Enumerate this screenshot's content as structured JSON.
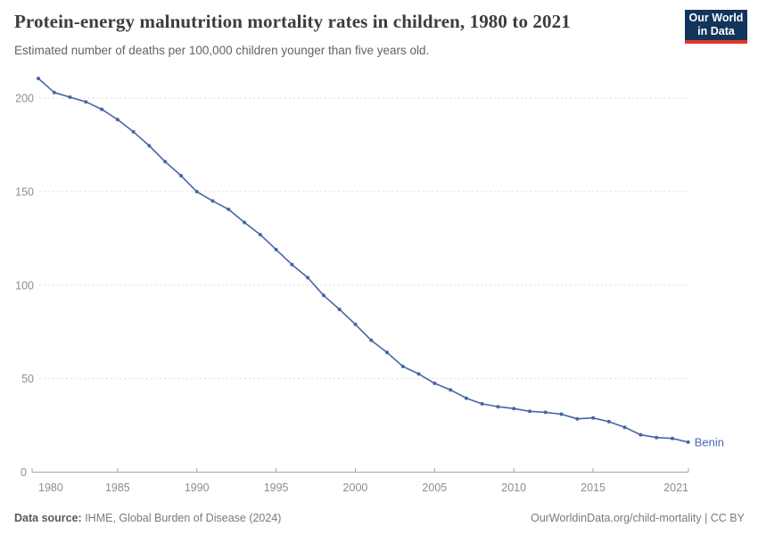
{
  "header": {
    "title": "Protein-energy malnutrition mortality rates in children, 1980 to 2021",
    "subtitle": "Estimated number of deaths per 100,000 children younger than five years old.",
    "logo_line1": "Our World",
    "logo_line2": "in Data"
  },
  "footer": {
    "source_label": "Data source:",
    "source_text": " IHME, Global Burden of Disease (2024)",
    "credit": "OurWorldinData.org/child-mortality | CC BY"
  },
  "colors": {
    "series": "#4765a6",
    "series_label": "#4d6bb3",
    "grid": "#dddddd",
    "axis": "#a6a6a6",
    "tick_label": "#8e8e8e",
    "logo_bg": "#12355b",
    "logo_stripe": "#e0362a"
  },
  "chart_data": {
    "type": "line",
    "title": "Protein-energy malnutrition mortality rates in children, 1980 to 2021",
    "subtitle": "Estimated number of deaths per 100,000 children younger than five years old.",
    "xlabel": "",
    "ylabel": "",
    "xlim": [
      1980,
      2021
    ],
    "ylim": [
      0,
      212
    ],
    "x_ticks": [
      1980,
      1985,
      1990,
      1995,
      2000,
      2005,
      2010,
      2015,
      2021
    ],
    "y_ticks": [
      0,
      50,
      100,
      150,
      200
    ],
    "grid": "horizontal-dashed",
    "legend_position": "end-of-line-label",
    "x": [
      1980,
      1981,
      1982,
      1983,
      1984,
      1985,
      1986,
      1987,
      1988,
      1989,
      1990,
      1991,
      1992,
      1993,
      1994,
      1995,
      1996,
      1997,
      1998,
      1999,
      2000,
      2001,
      2002,
      2003,
      2004,
      2005,
      2006,
      2007,
      2008,
      2009,
      2010,
      2011,
      2012,
      2013,
      2014,
      2015,
      2016,
      2017,
      2018,
      2019,
      2020,
      2021
    ],
    "series": [
      {
        "name": "Benin",
        "values": [
          210.5,
          203,
          200.5,
          198,
          194,
          188.5,
          182,
          174.5,
          166,
          158.5,
          150,
          145,
          140.5,
          133.5,
          127,
          119,
          111,
          104,
          94.5,
          87,
          79,
          70.5,
          64,
          56.5,
          52.5,
          47.5,
          44,
          39.5,
          36.5,
          35,
          34,
          32.5,
          32,
          31,
          28.5,
          29,
          27,
          24,
          20,
          18.5,
          18,
          16
        ]
      }
    ]
  }
}
